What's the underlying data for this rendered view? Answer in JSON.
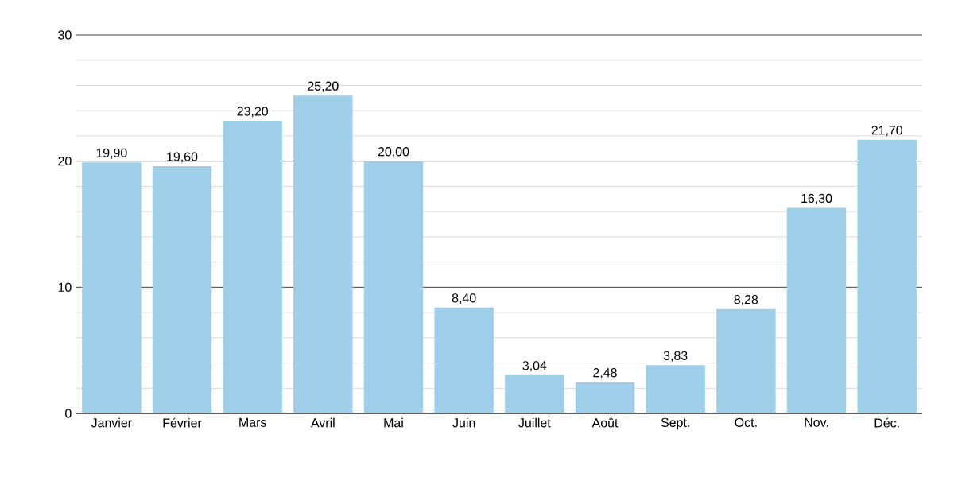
{
  "chart_data": {
    "type": "bar",
    "categories": [
      "Janvier",
      "Février",
      "Mars",
      "Avril",
      "Mai",
      "Juin",
      "Juillet",
      "Août",
      "Sept.",
      "Oct.",
      "Nov.",
      "Déc."
    ],
    "values": [
      19.9,
      19.6,
      23.2,
      25.2,
      20.0,
      8.4,
      3.04,
      2.48,
      3.83,
      8.28,
      16.3,
      21.7
    ],
    "value_labels": [
      "19,90",
      "19,60",
      "23,20",
      "25,20",
      "20,00",
      "8,40",
      "3,04",
      "2,48",
      "3,83",
      "8,28",
      "16,30",
      "21,70"
    ],
    "color": "#9fcfe8",
    "ylim": [
      0,
      30
    ],
    "yticks": [
      0,
      {
        "value": 2,
        "label": null
      },
      {
        "value": 4,
        "label": null
      },
      {
        "value": 6,
        "label": null
      },
      {
        "value": 8,
        "label": null
      },
      10,
      {
        "value": 12,
        "label": null
      },
      {
        "value": 14,
        "label": null
      },
      {
        "value": 16,
        "label": null
      },
      {
        "value": 18,
        "label": null
      },
      20,
      {
        "value": 22,
        "label": null
      },
      {
        "value": 24,
        "label": null
      },
      {
        "value": 26,
        "label": null
      },
      {
        "value": 28,
        "label": null
      },
      30
    ],
    "grid": "y"
  }
}
